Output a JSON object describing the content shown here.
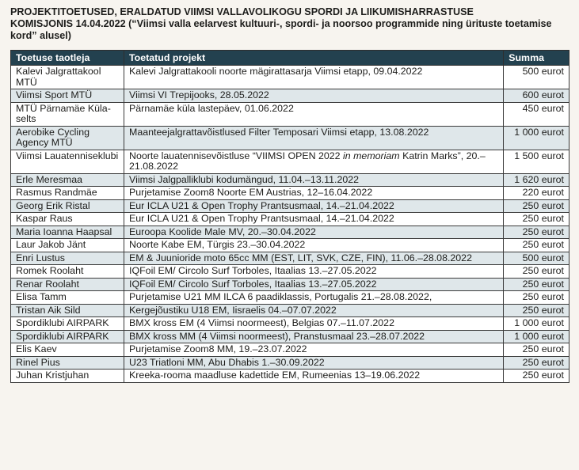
{
  "heading": {
    "line1": "PROJEKTITOETUSED, ERALDATUD VIIMSI VALLAVOLIKOGU SPORDI JA LIIKUMISHARRASTUSE",
    "line2_bold": "KOMISJONIS 14.04.2022",
    "line2_rest": " (“Viimsi valla eelarvest kultuuri-, spordi- ja noorsoo programmide ning ürituste toetamise kord” alusel)"
  },
  "table": {
    "headers": [
      "Toetuse taotleja",
      "Toetatud projekt",
      "Summa"
    ],
    "rows": [
      {
        "applicant": "Kalevi Jalgrattakool MTÜ",
        "project": "Kalevi Jalgrattakooli noorte mägirattasarja Viimsi etapp, 09.04.2022",
        "sum": "500 eurot"
      },
      {
        "applicant": "Viimsi Sport MTÜ",
        "project": "Viimsi VI Trepijooks, 28.05.2022",
        "sum": "600 eurot"
      },
      {
        "applicant": "MTÜ Pärnamäe Küla­selts",
        "project": "Pärnamäe küla lastepäev, 01.06.2022",
        "sum": "450 eurot"
      },
      {
        "applicant": "Aerobike Cycling Agency MTÜ",
        "project": "Maanteejalgrattavõistlused Filter Temposari Viimsi etapp, 13.08.2022",
        "sum": "1 000 eurot"
      },
      {
        "applicant": "Viimsi Lauatenniseklubi",
        "project_pre": "Noorte lauatennisevõistluse “VIIMSI OPEN 2022 ",
        "project_em": "in memoriam",
        "project_post": " Katrin Marks”, 20.–21.08.2022",
        "sum": "1 500 eurot"
      },
      {
        "applicant": "Erle Meresmaa",
        "project": "Viimsi Jalgpalliklubi kodumängud, 11.04.–13.11.2022",
        "sum": "1 620 eurot"
      },
      {
        "applicant": "Rasmus Randmäe",
        "project": "Purjetamise Zoom8 Noorte EM Austrias, 12–16.04.2022",
        "sum": "220 eurot"
      },
      {
        "applicant": "Georg Erik Ristal",
        "project": "Eur ICLA U21 & Open Trophy Prantsusmaal, 14.–21.04.2022",
        "sum": "250 eurot"
      },
      {
        "applicant": "Kaspar Raus",
        "project": "Eur ICLA U21 & Open Trophy Prantsusmaal, 14.–21.04.2022",
        "sum": "250 eurot"
      },
      {
        "applicant": "Maria Ioanna Haapsal",
        "project": "Euroopa Koolide Male MV, 20.–30.04.2022",
        "sum": "250 eurot"
      },
      {
        "applicant": "Laur Jakob Jänt",
        "project": "Noorte Kabe EM, Türgis 23.–30.04.2022",
        "sum": "250 eurot"
      },
      {
        "applicant": "Enri Lustus",
        "project": "EM & Juunioride moto 65cc MM (EST, LIT, SVK, CZE, FIN), 11.06.–28.08.2022",
        "sum": "500 eurot"
      },
      {
        "applicant": "Romek Roolaht",
        "project": "IQFoil EM/ Circolo Surf Torboles, Itaalias 13.–27.05.2022",
        "sum": "250 eurot"
      },
      {
        "applicant": "Renar Roolaht",
        "project": "IQFoil EM/ Circolo Surf Torboles, Itaalias 13.–27.05.2022",
        "sum": "250 eurot"
      },
      {
        "applicant": "Elisa Tamm",
        "project": "Purjetamise U21 MM ILCA 6 paadiklassis, Portugalis 21.–28.08.2022,",
        "sum": "250 eurot"
      },
      {
        "applicant": "Tristan Aik Sild",
        "project": "Kergejõustiku U18 EM, Iisraelis 04.–07.07.2022",
        "sum": "250 eurot"
      },
      {
        "applicant": "Spordiklubi AIRPARK",
        "project": "BMX kross EM (4 Viimsi noormeest), Belgias 07.–11.07.2022",
        "sum": "1 000 eurot"
      },
      {
        "applicant": "Spordiklubi AIRPARK",
        "project": "BMX kross MM (4 Viimsi noormeest), Pranstusmaal 23.–28.07.2022",
        "sum": "1 000 eurot"
      },
      {
        "applicant": "Elis Kaev",
        "project": "Purjetamise Zoom8 MM, 19.–23.07.2022",
        "sum": "250 eurot"
      },
      {
        "applicant": "Rinel Pius",
        "project": "U23 Triatloni MM, Abu Dhabis 1.–30.09.2022",
        "sum": "250 eurot"
      },
      {
        "applicant": "Juhan Kristjuhan",
        "project": "Kreeka-rooma maadluse kadettide EM, Rumeenias 13–19.06.2022",
        "sum": "250 eurot"
      }
    ]
  }
}
